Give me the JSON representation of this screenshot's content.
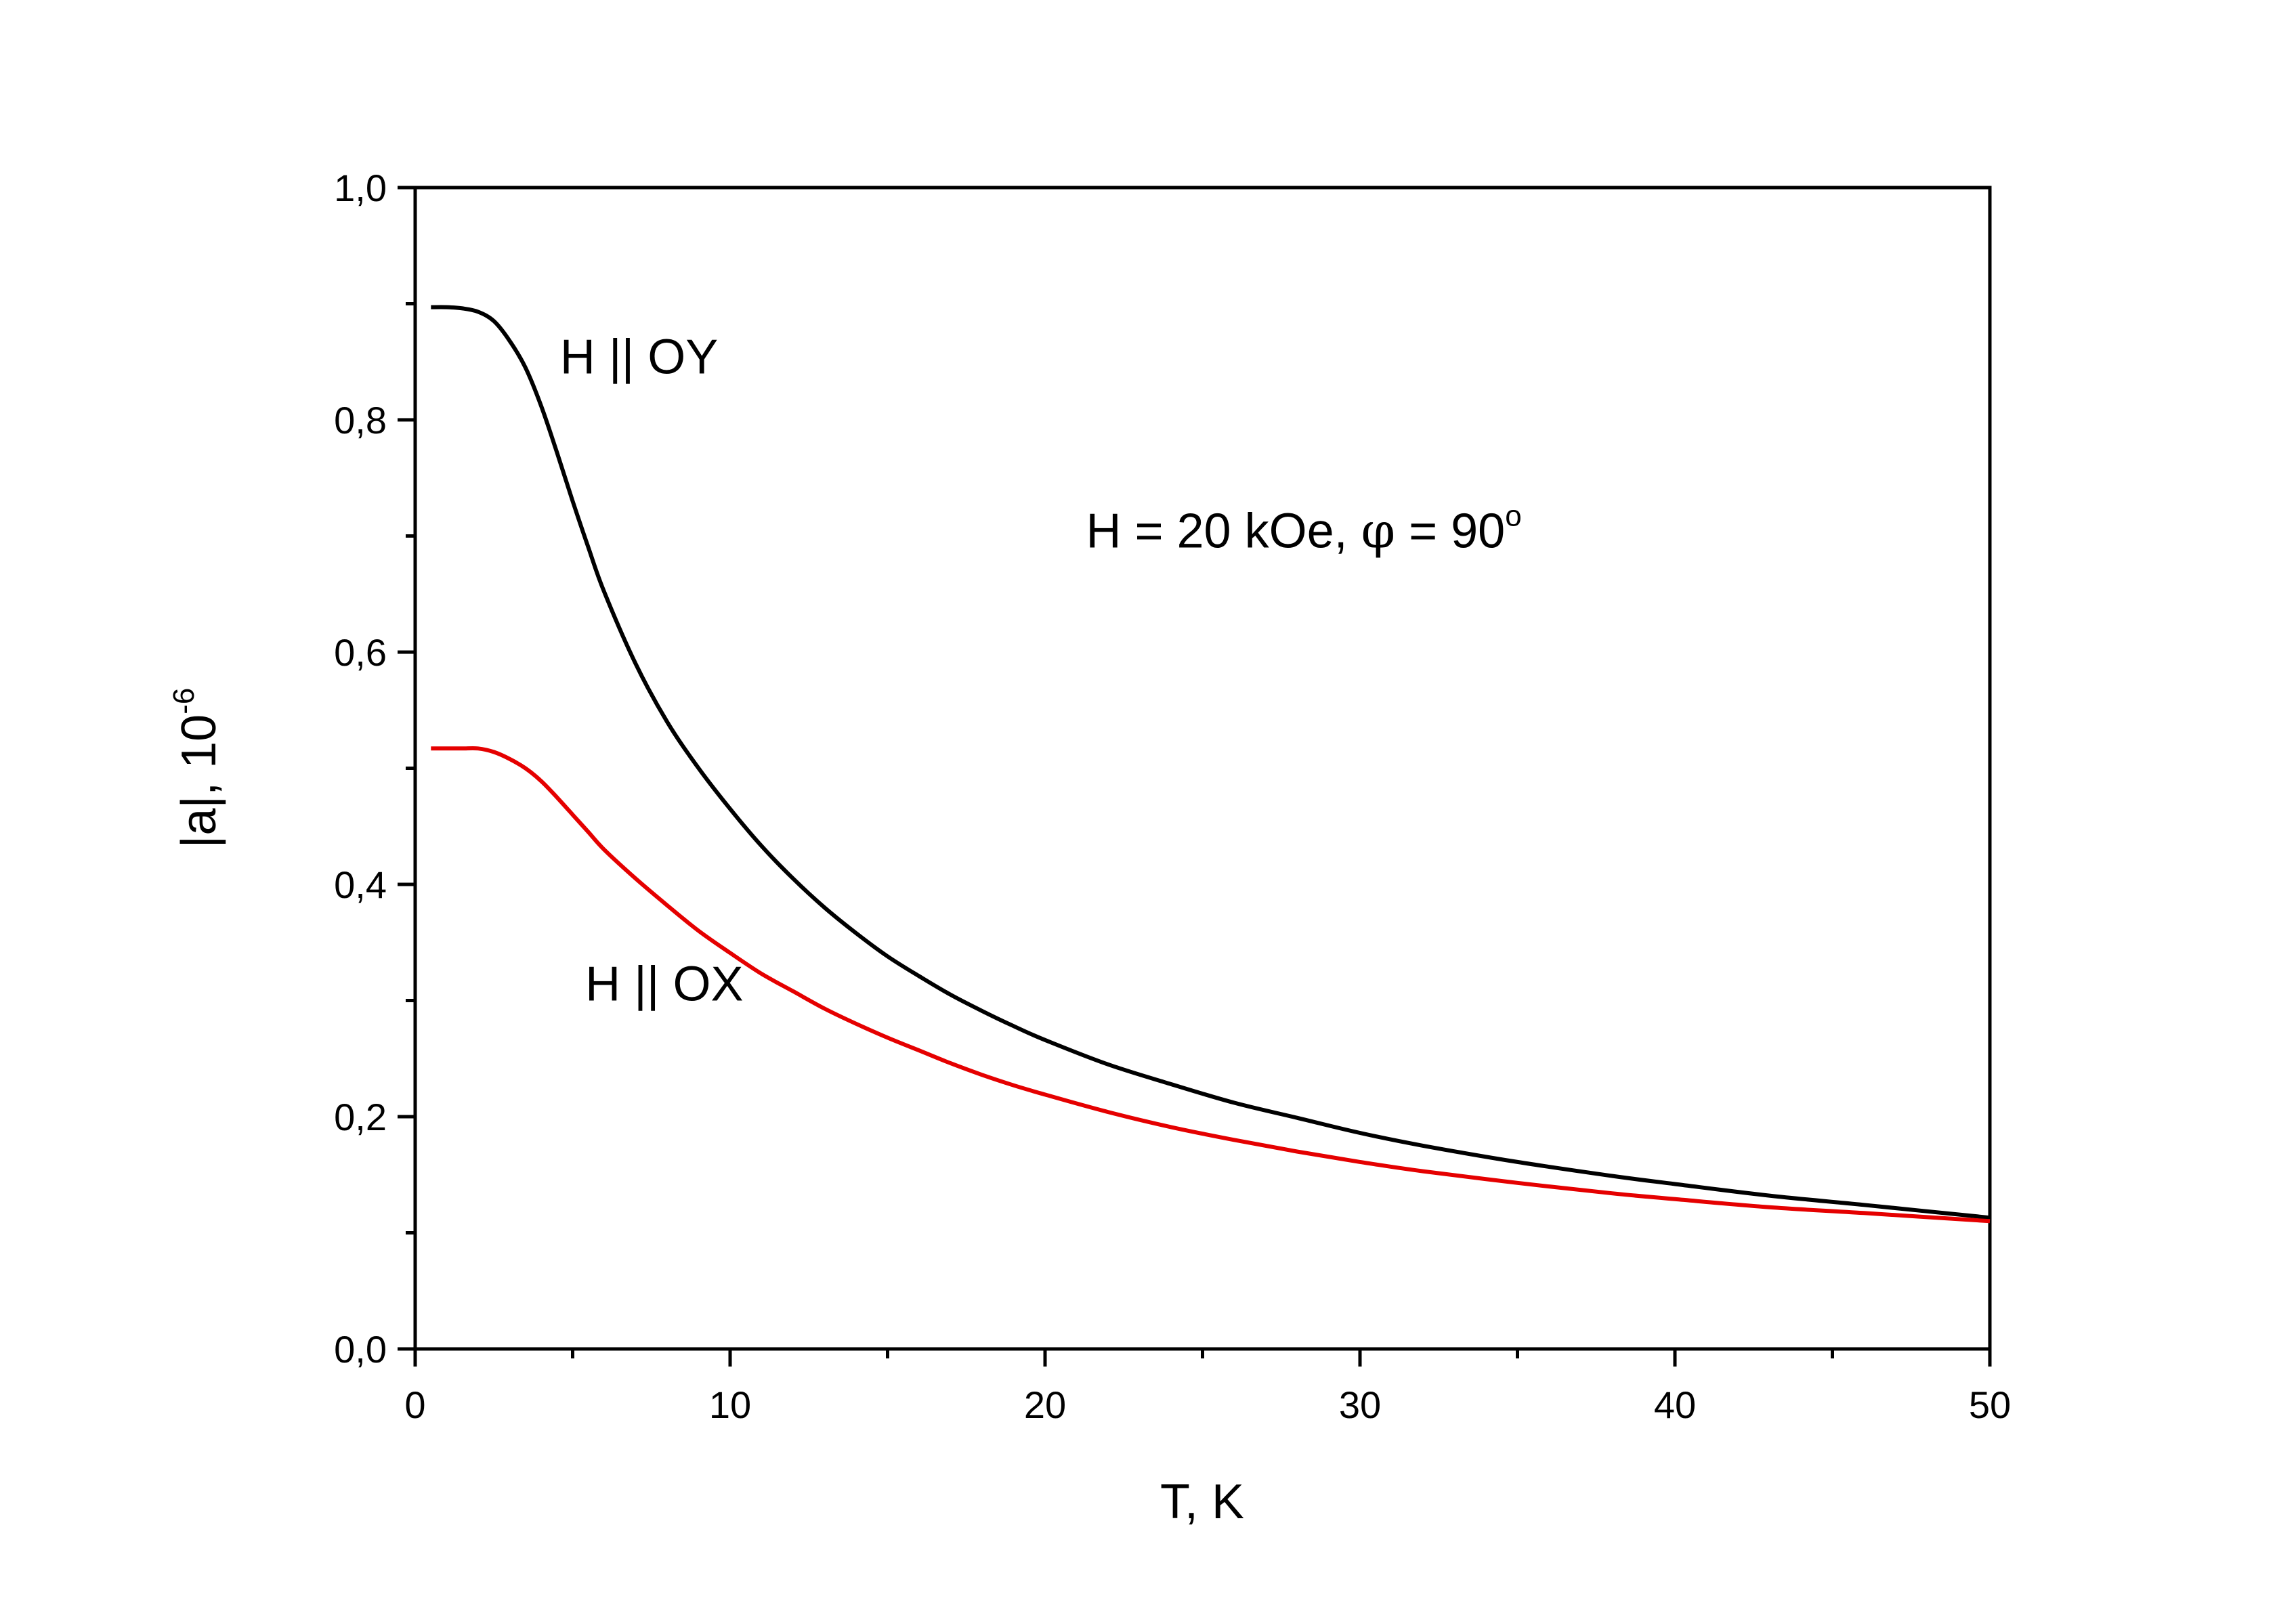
{
  "chart_data": {
    "type": "line",
    "title": "",
    "xlabel": "T, K",
    "ylabel": {
      "base": "|a|, 10",
      "exponent": "-6"
    },
    "xlim": [
      0,
      50
    ],
    "ylim": [
      0,
      1.0
    ],
    "x_ticks": [
      0,
      10,
      20,
      30,
      40,
      50
    ],
    "x_tick_labels": [
      "0",
      "10",
      "20",
      "30",
      "40",
      "50"
    ],
    "x_minor_ticks": [
      5,
      15,
      25,
      35,
      45
    ],
    "y_ticks": [
      0,
      0.2,
      0.4,
      0.6,
      0.8,
      1.0
    ],
    "y_tick_labels": [
      "0,0",
      "0,2",
      "0,4",
      "0,6",
      "0,8",
      "1,0"
    ],
    "y_minor_ticks": [
      0.1,
      0.3,
      0.5,
      0.7,
      0.9
    ],
    "grid": false,
    "annotations": [
      {
        "id": "label-oy",
        "text": "H || OY",
        "x": 4.6,
        "y": 0.84
      },
      {
        "id": "label-ox",
        "text": "H || OX",
        "x": 5.4,
        "y": 0.3
      },
      {
        "id": "label-field",
        "parts": [
          "H = 20 kOe, ",
          "φ",
          " = 90",
          "o"
        ],
        "x": 21.3,
        "y": 0.69
      }
    ],
    "series": [
      {
        "color": "#000000",
        "x": [
          0.5,
          1,
          1.5,
          2,
          2.5,
          3,
          3.5,
          4,
          4.5,
          5,
          5.5,
          6,
          7,
          8,
          9,
          10,
          11,
          12,
          13,
          14,
          15,
          16,
          17,
          18,
          19,
          20,
          22,
          24,
          26,
          28,
          30,
          32,
          35,
          38,
          40,
          43,
          46,
          50
        ],
        "y": [
          0.897,
          0.897,
          0.896,
          0.893,
          0.885,
          0.868,
          0.845,
          0.812,
          0.772,
          0.73,
          0.69,
          0.652,
          0.59,
          0.54,
          0.5,
          0.465,
          0.433,
          0.405,
          0.38,
          0.358,
          0.338,
          0.321,
          0.305,
          0.291,
          0.278,
          0.266,
          0.245,
          0.228,
          0.212,
          0.199,
          0.186,
          0.175,
          0.161,
          0.149,
          0.142,
          0.132,
          0.124,
          0.113
        ]
      },
      {
        "color": "#e50000",
        "x": [
          0.5,
          1,
          1.5,
          2,
          2.5,
          3,
          3.5,
          4,
          4.5,
          5,
          5.5,
          6,
          7,
          8,
          9,
          10,
          11,
          12,
          13,
          14,
          15,
          16,
          17,
          18,
          19,
          20,
          22,
          24,
          26,
          28,
          30,
          32,
          35,
          38,
          40,
          43,
          46,
          50
        ],
        "y": [
          0.517,
          0.517,
          0.517,
          0.517,
          0.514,
          0.508,
          0.5,
          0.489,
          0.475,
          0.46,
          0.445,
          0.43,
          0.405,
          0.382,
          0.36,
          0.341,
          0.323,
          0.308,
          0.293,
          0.28,
          0.268,
          0.257,
          0.246,
          0.236,
          0.227,
          0.219,
          0.204,
          0.191,
          0.18,
          0.17,
          0.161,
          0.153,
          0.143,
          0.134,
          0.129,
          0.122,
          0.117,
          0.11
        ]
      }
    ]
  }
}
